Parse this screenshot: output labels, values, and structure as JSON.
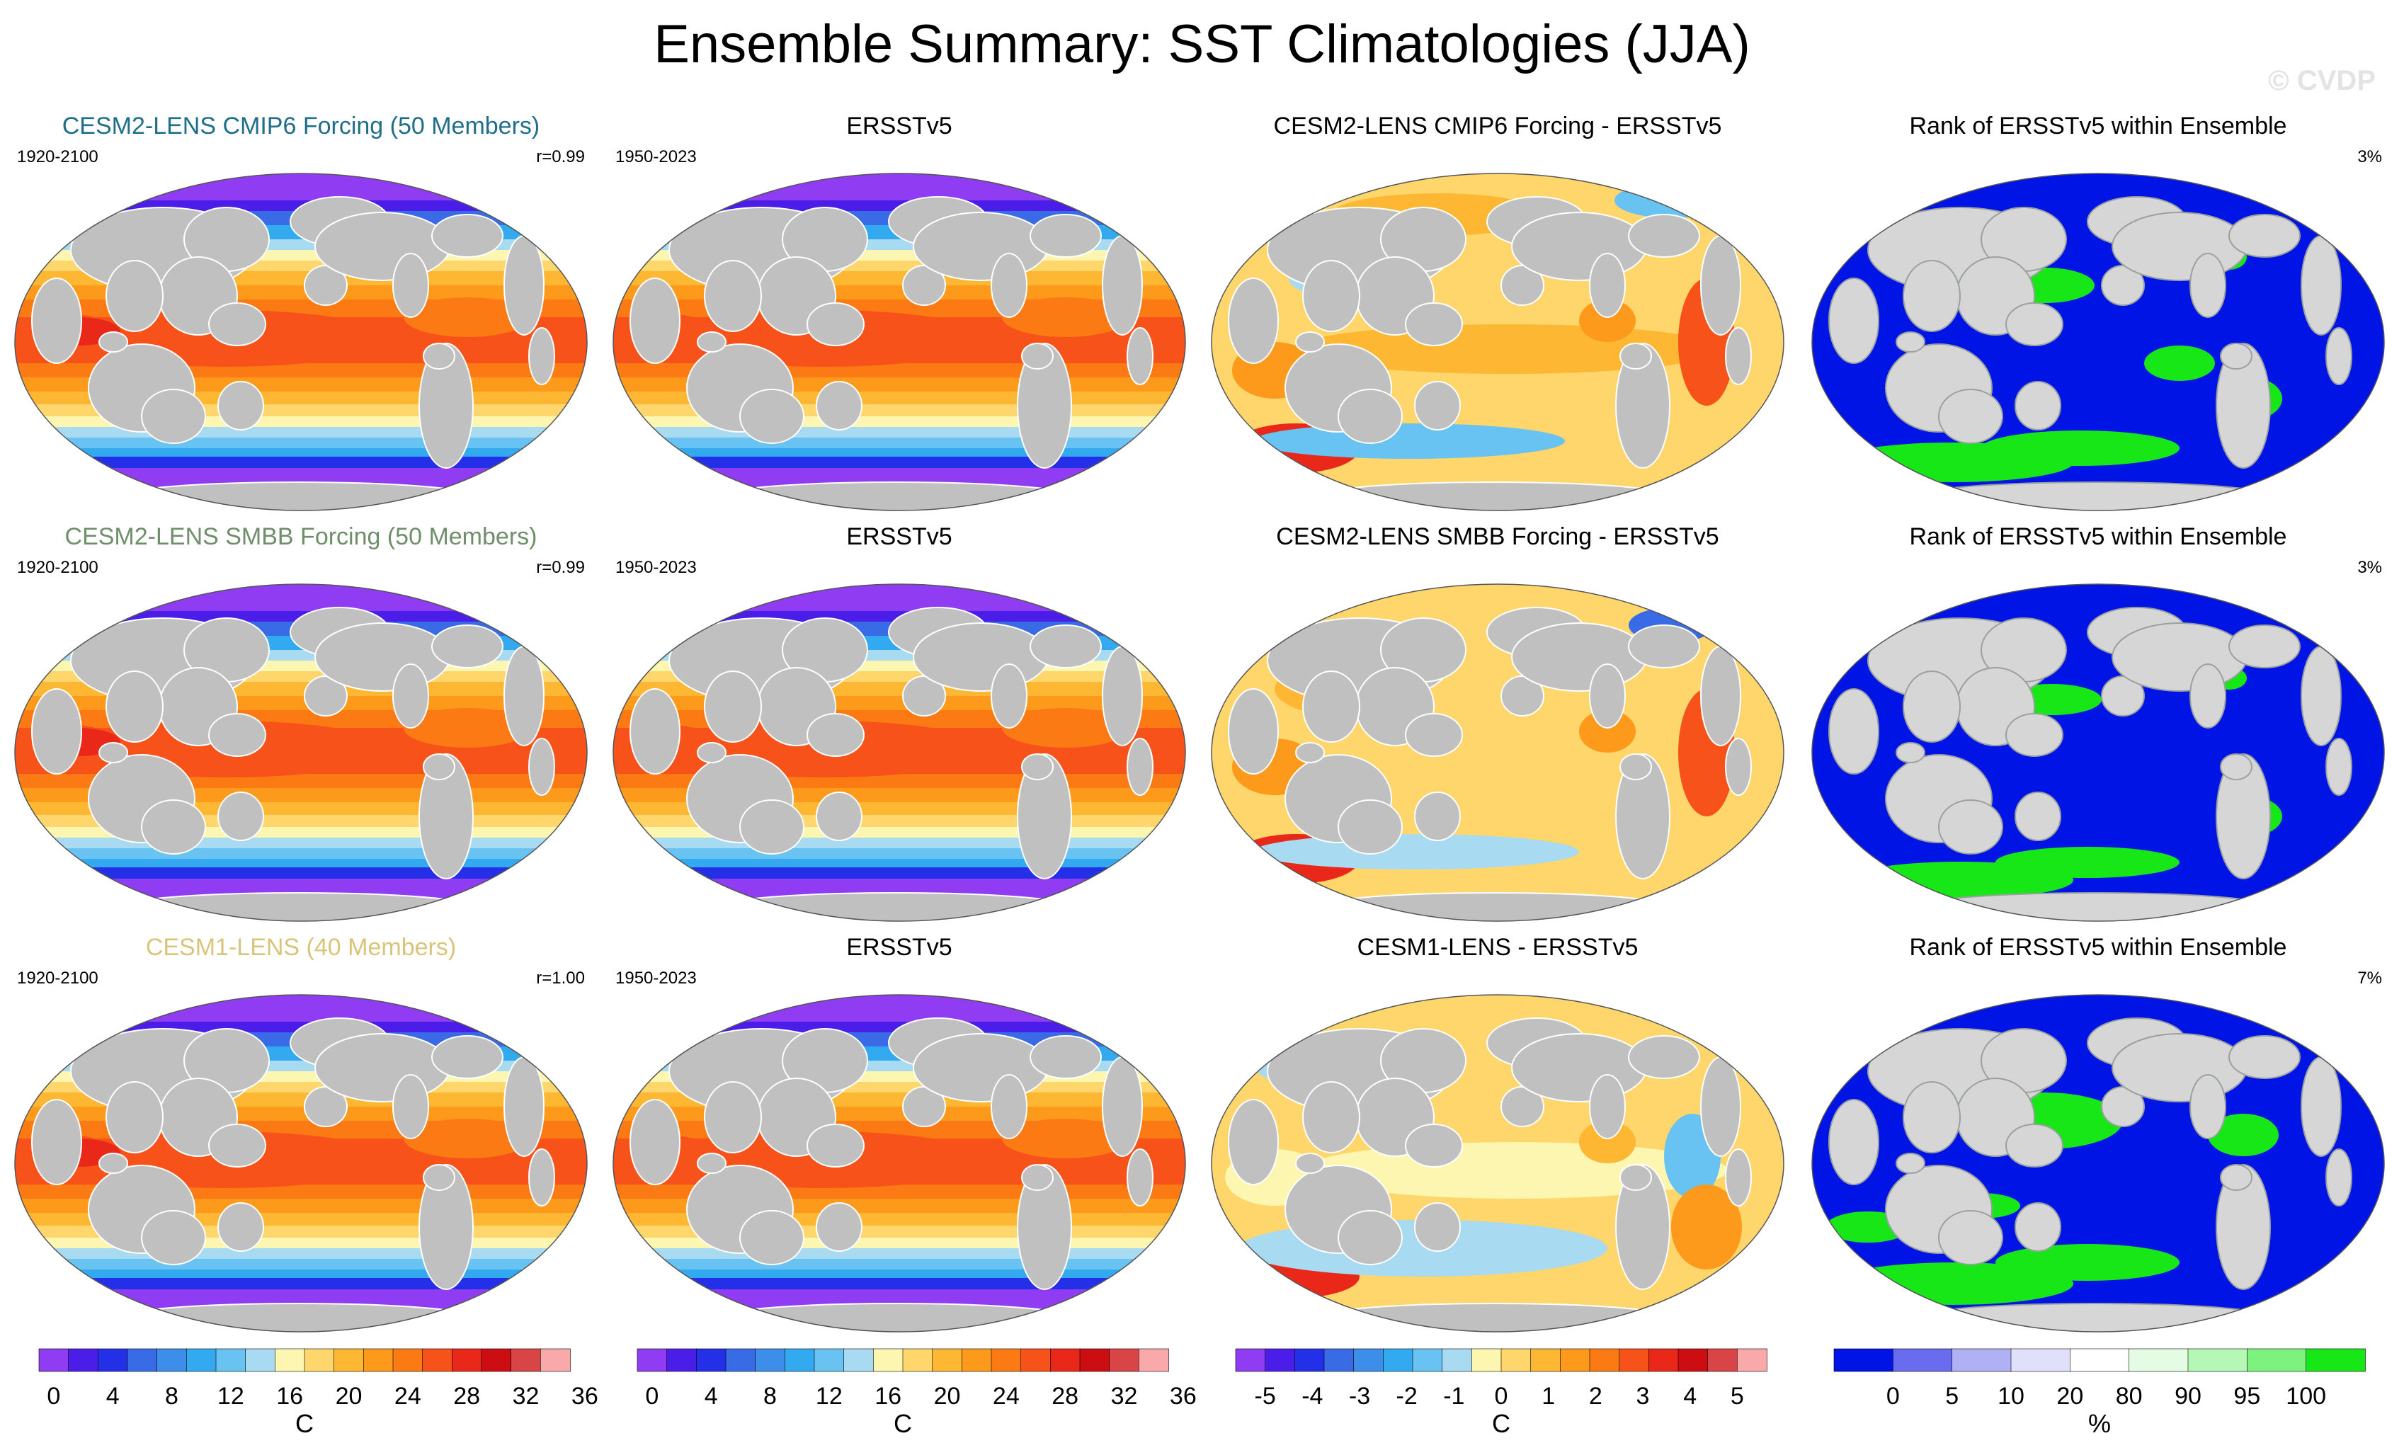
{
  "figure": {
    "title": "Ensemble Summary: SST Climatologies (JJA)",
    "watermark": "© CVDP"
  },
  "rows": [
    {
      "model": {
        "title": "CESM2-LENS CMIP6 Forcing (50 Members)",
        "title_color": "#1f6e8a",
        "years": "1920-2100",
        "r": "r=0.99"
      },
      "obs": {
        "title": "ERSSTv5",
        "years": "1950-2023"
      },
      "diff": {
        "title": "CESM2-LENS CMIP6 Forcing - ERSSTv5"
      },
      "rank": {
        "title": "Rank of ERSSTv5 within Ensemble",
        "pct": "3%"
      }
    },
    {
      "model": {
        "title": "CESM2-LENS SMBB Forcing (50 Members)",
        "title_color": "#6f8f6a",
        "years": "1920-2100",
        "r": "r=0.99"
      },
      "obs": {
        "title": "ERSSTv5",
        "years": "1950-2023"
      },
      "diff": {
        "title": "CESM2-LENS SMBB Forcing - ERSSTv5"
      },
      "rank": {
        "title": "Rank of ERSSTv5 within Ensemble",
        "pct": "3%"
      }
    },
    {
      "model": {
        "title": "CESM1-LENS (40 Members)",
        "title_color": "#d8c47a",
        "years": "1920-2100",
        "r": "r=1.00"
      },
      "obs": {
        "title": "ERSSTv5",
        "years": "1950-2023"
      },
      "diff": {
        "title": "CESM1-LENS - ERSSTv5"
      },
      "rank": {
        "title": "Rank of ERSSTv5 within Ensemble",
        "pct": "7%"
      }
    }
  ],
  "colorbars": [
    {
      "units": "C",
      "ticks": [
        "0",
        "4",
        "8",
        "12",
        "16",
        "20",
        "24",
        "28",
        "32",
        "36"
      ],
      "colors": [
        "#8f3cf2",
        "#4a1ee8",
        "#2330e8",
        "#3a6be6",
        "#3d8ee8",
        "#33aaf0",
        "#68c2f2",
        "#a8daf2",
        "#fcf6b0",
        "#fed66b",
        "#fdb732",
        "#fe9a1b",
        "#fc7a14",
        "#f7521a",
        "#e9281a",
        "#cc0d12",
        "#d94446",
        "#f9a9aa"
      ]
    },
    {
      "units": "C",
      "ticks": [
        "0",
        "4",
        "8",
        "12",
        "16",
        "20",
        "24",
        "28",
        "32",
        "36"
      ],
      "colors": [
        "#8f3cf2",
        "#4a1ee8",
        "#2330e8",
        "#3a6be6",
        "#3d8ee8",
        "#33aaf0",
        "#68c2f2",
        "#a8daf2",
        "#fcf6b0",
        "#fed66b",
        "#fdb732",
        "#fe9a1b",
        "#fc7a14",
        "#f7521a",
        "#e9281a",
        "#cc0d12",
        "#d94446",
        "#f9a9aa"
      ]
    },
    {
      "units": "C",
      "ticks": [
        "-5",
        "-4",
        "-3",
        "-2",
        "-1",
        "0",
        "1",
        "2",
        "3",
        "4",
        "5"
      ],
      "colors": [
        "#8f3cf2",
        "#4a1ee8",
        "#2330e8",
        "#3a6be6",
        "#3d8ee8",
        "#33aaf0",
        "#68c2f2",
        "#a8daf2",
        "#fcf6b0",
        "#fed66b",
        "#fdb732",
        "#fe9a1b",
        "#fc7a14",
        "#f7521a",
        "#e9281a",
        "#cc0d12",
        "#d94446",
        "#f9a9aa"
      ]
    },
    {
      "units": "%",
      "ticks": [
        "0",
        "5",
        "10",
        "20",
        "80",
        "90",
        "95",
        "100"
      ],
      "colors": [
        "#0014e6",
        "#6a6cf0",
        "#b0b0f4",
        "#e0e0fb",
        "#ffffff",
        "#e4fbe4",
        "#b5f7b5",
        "#7ef27e",
        "#17e617"
      ]
    }
  ]
}
